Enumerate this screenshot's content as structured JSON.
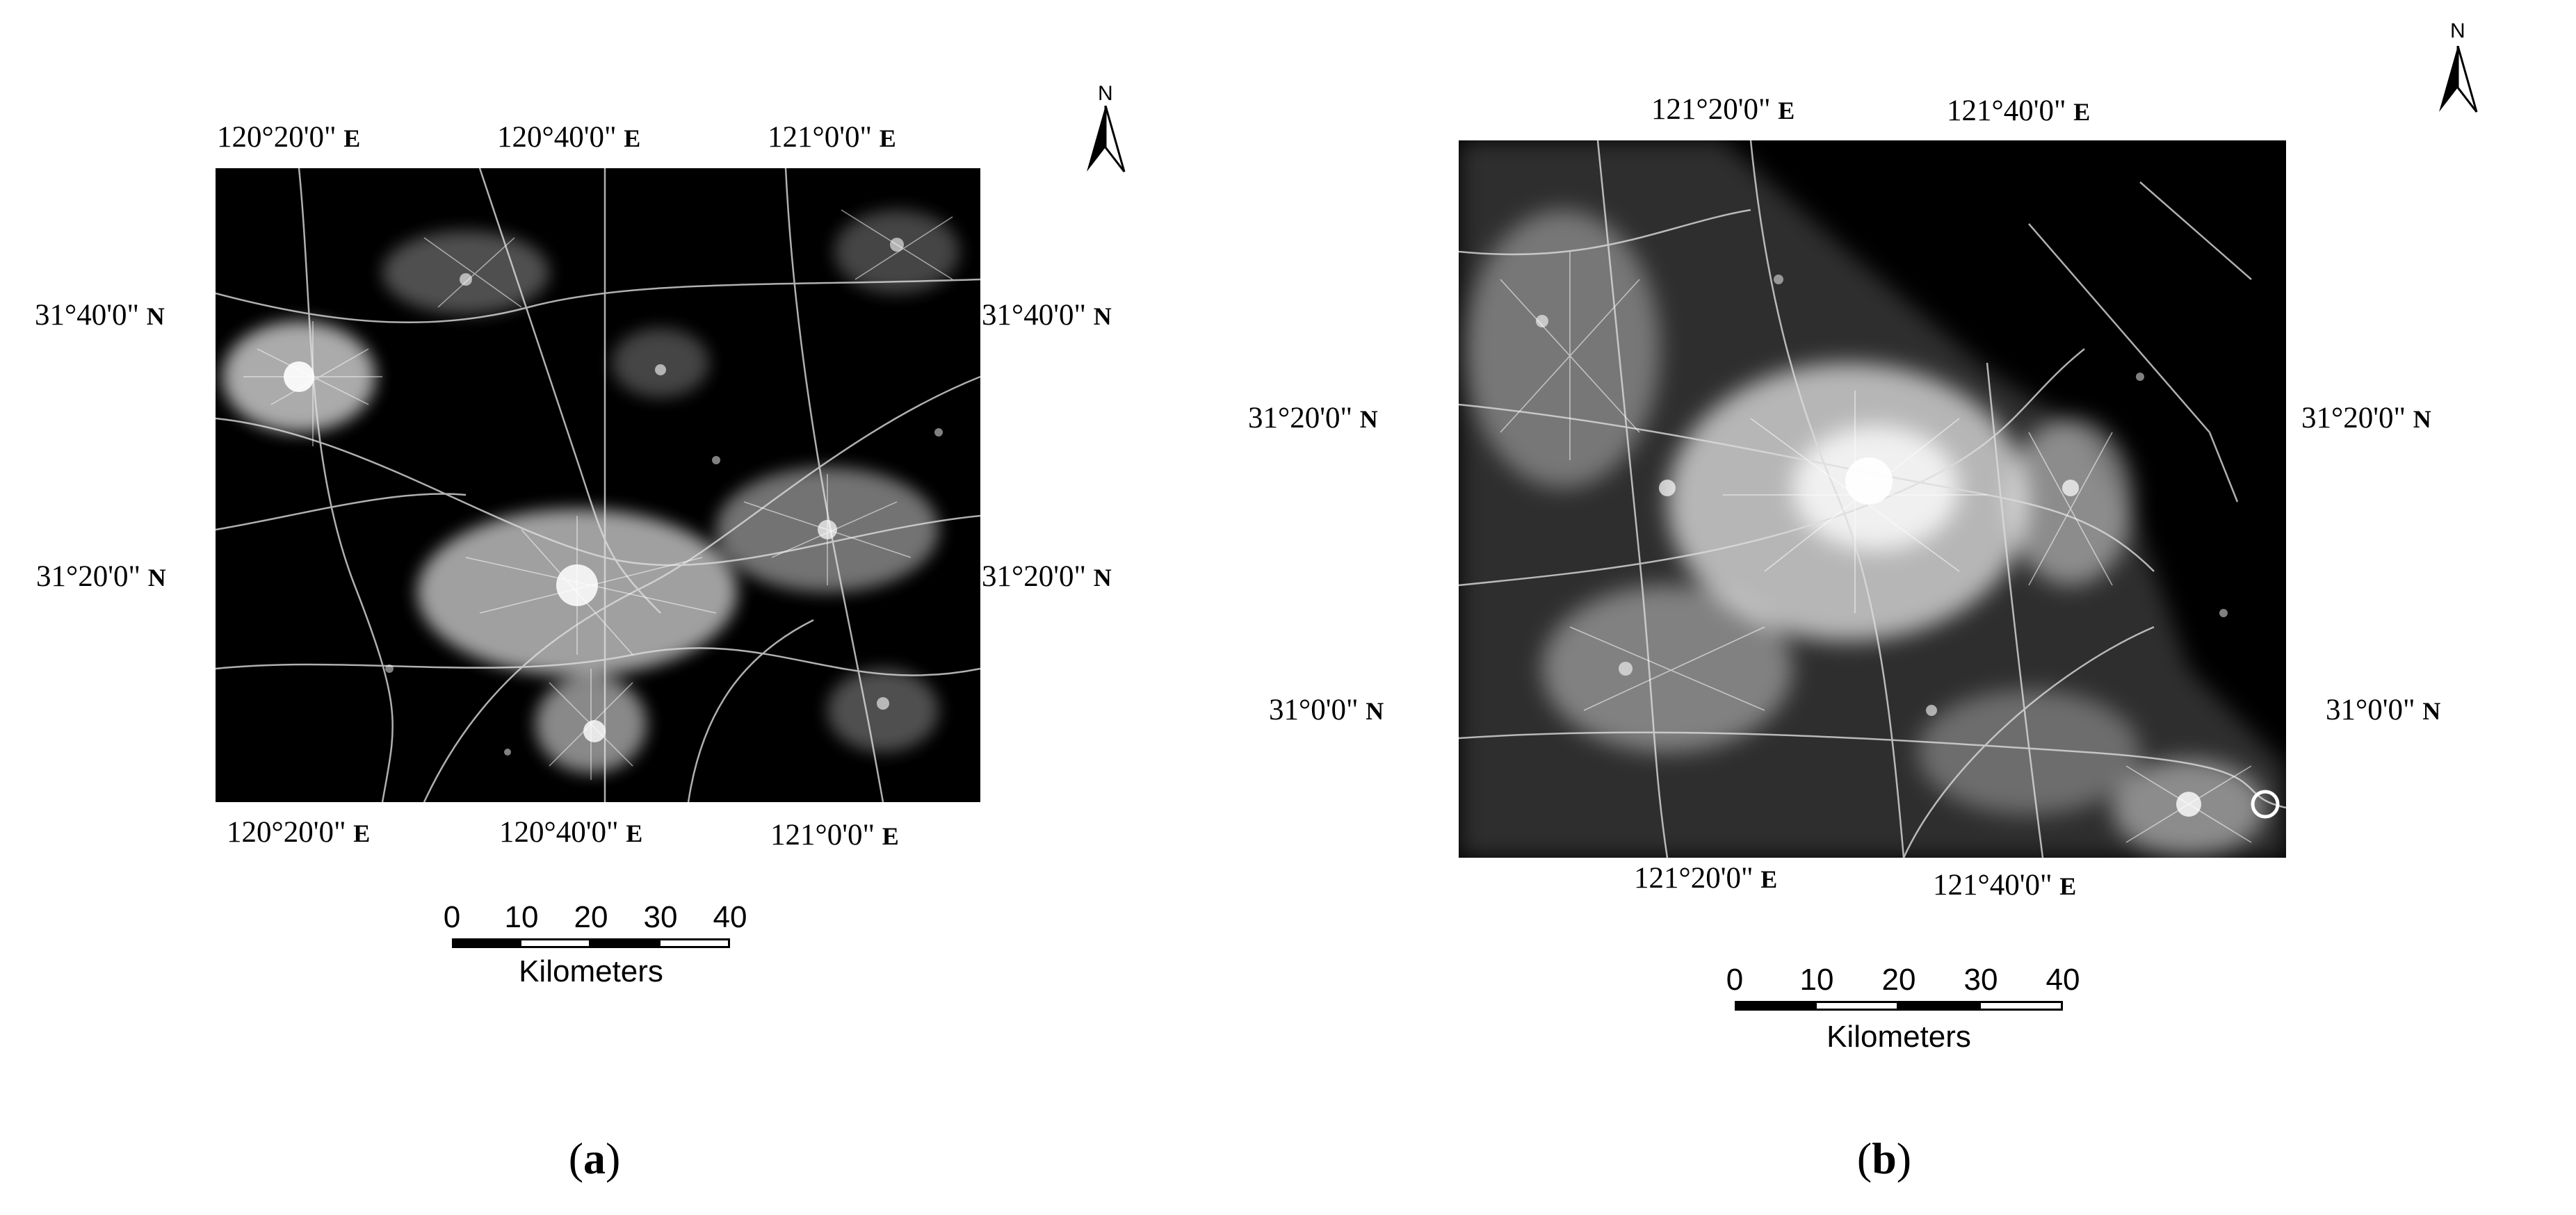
{
  "panels": [
    {
      "id": "a",
      "caption_open": "(",
      "caption_letter": "a",
      "caption_close": ")",
      "top_labels": [
        "120°20'0\" ",
        "120°40'0\" ",
        "121°0'0\" "
      ],
      "top_dir": "E",
      "bottom_labels": [
        "120°20'0\" ",
        "120°40'0\" ",
        "121°0'0\" "
      ],
      "bottom_dir": "E",
      "left_labels": [
        "31°40'0\" ",
        "31°20'0\" "
      ],
      "left_dir": "N",
      "right_labels": [
        "31°40'0\" ",
        "31°20'0\" "
      ],
      "right_dir": "N",
      "north_label": "N",
      "scale_ticks": [
        "0",
        "10",
        "20",
        "30",
        "40"
      ],
      "scale_unit": "Kilometers"
    },
    {
      "id": "b",
      "caption_open": "(",
      "caption_letter": "b",
      "caption_close": ")",
      "top_labels": [
        "121°20'0\" ",
        "121°40'0\" "
      ],
      "top_dir": "E",
      "bottom_labels": [
        "121°20'0\" ",
        "121°40'0\" "
      ],
      "bottom_dir": "E",
      "left_labels": [
        "31°20'0\" ",
        "31°0'0\" "
      ],
      "left_dir": "N",
      "right_labels": [
        "31°20'0\" ",
        "31°0'0\" "
      ],
      "right_dir": "N",
      "north_label": "N",
      "scale_ticks": [
        "0",
        "10",
        "20",
        "30",
        "40"
      ],
      "scale_unit": "Kilometers"
    }
  ]
}
